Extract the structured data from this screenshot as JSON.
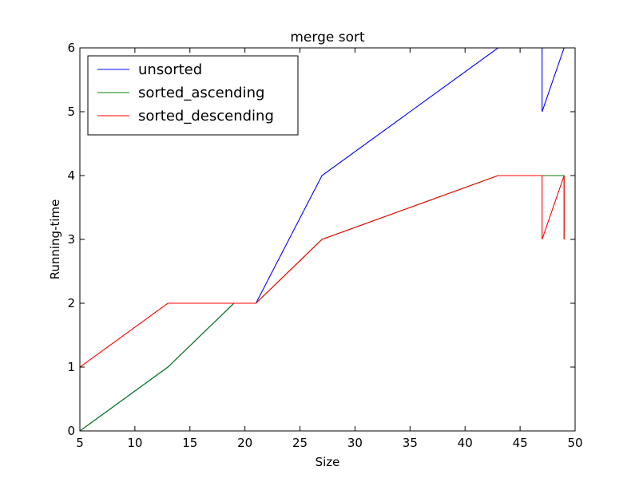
{
  "chart_data": {
    "type": "line",
    "title": "merge sort",
    "xlabel": "Size",
    "ylabel": "Running-time",
    "xlim": [
      5,
      50
    ],
    "ylim": [
      0,
      6
    ],
    "xticks": [
      5,
      10,
      15,
      20,
      25,
      30,
      35,
      40,
      45,
      50
    ],
    "yticks": [
      0,
      1,
      2,
      3,
      4,
      5,
      6
    ],
    "grid": false,
    "legend_position": "top-left",
    "series": [
      {
        "name": "unsorted",
        "color": "#0000ff",
        "x": [
          5,
          13,
          19,
          21,
          27,
          43,
          47,
          47,
          49
        ],
        "y": [
          0,
          1,
          2,
          2,
          4,
          6,
          6,
          5,
          6
        ]
      },
      {
        "name": "sorted_ascending",
        "color": "#008000",
        "x": [
          5,
          13,
          19,
          21,
          27,
          43,
          47,
          49,
          49
        ],
        "y": [
          0,
          1,
          2,
          2,
          3,
          4,
          4,
          4,
          3
        ]
      },
      {
        "name": "sorted_descending",
        "color": "#ff0000",
        "x": [
          5,
          13,
          19,
          21,
          27,
          43,
          47,
          47,
          49,
          49
        ],
        "y": [
          1,
          2,
          2,
          2,
          3,
          4,
          4,
          3,
          4,
          3
        ]
      }
    ]
  }
}
